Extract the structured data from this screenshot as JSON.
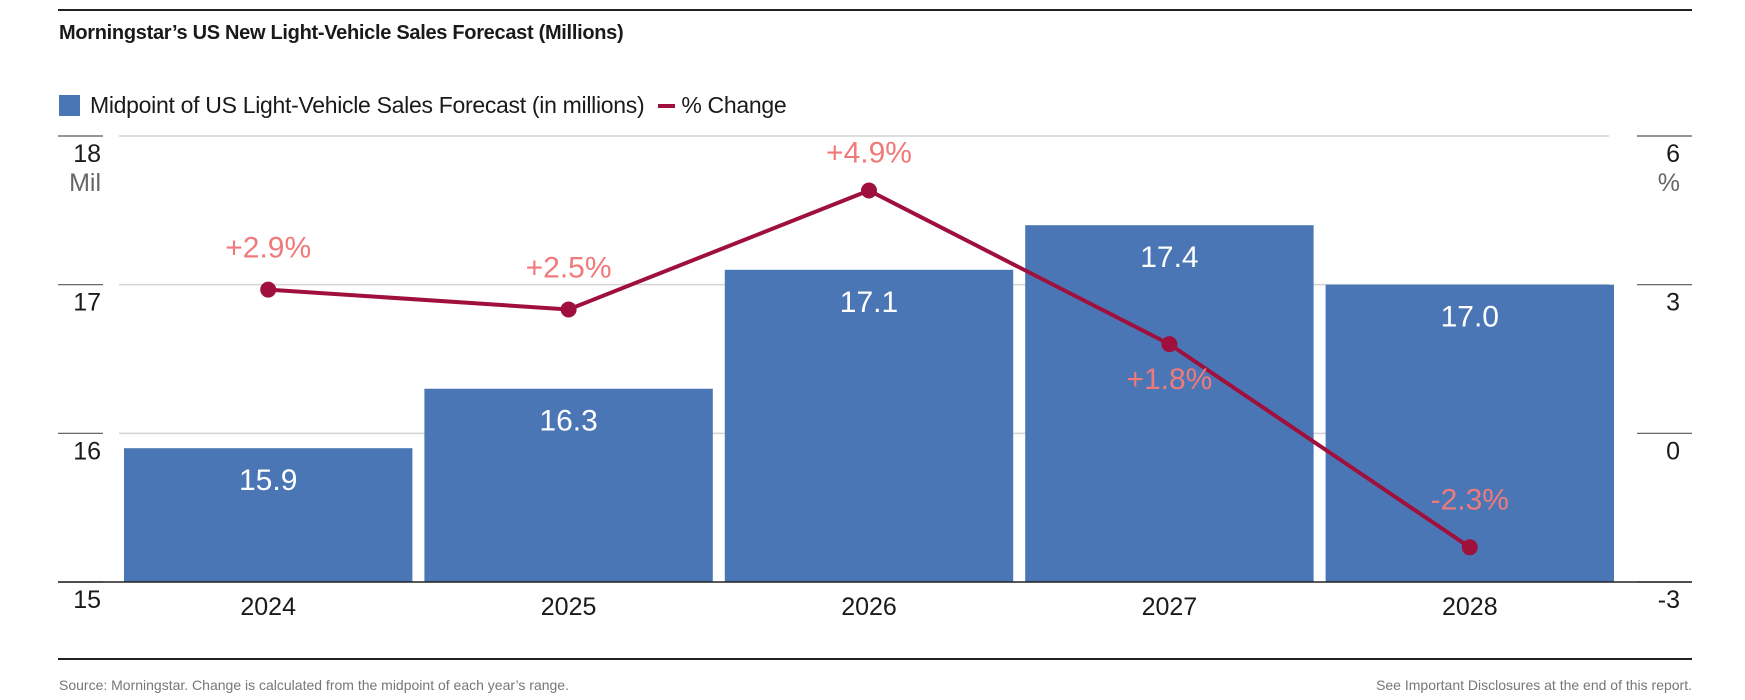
{
  "title": "Morningstar’s US New Light-Vehicle Sales Forecast (Millions)",
  "footer": {
    "source": "Source: Morningstar. Change is calculated from the midpoint of each year’s range.",
    "disclosure": "See Important Disclosures at the end of this report."
  },
  "colors": {
    "bar": "#4a76b5",
    "line": "#a0103d",
    "line_label": "#f07a7a",
    "grid": "#d4d4d4",
    "axis": "#222222"
  },
  "chart_data": {
    "type": "bar",
    "title": "Morningstar’s US New Light-Vehicle Sales Forecast (Millions)",
    "categories": [
      "2024",
      "2025",
      "2026",
      "2027",
      "2028"
    ],
    "series": [
      {
        "name": "Midpoint of US Light-Vehicle Sales Forecast (in millions)",
        "type": "bar",
        "axis": "left",
        "values": [
          15.9,
          16.3,
          17.1,
          17.4,
          17.0
        ],
        "labels": [
          "15.9",
          "16.3",
          "17.1",
          "17.4",
          "17.0"
        ]
      },
      {
        "name": "% Change",
        "type": "line",
        "axis": "right",
        "values": [
          2.9,
          2.5,
          4.9,
          1.8,
          -2.3
        ],
        "labels": [
          "+2.9%",
          "+2.5%",
          "+4.9%",
          "+1.8%",
          "-2.3%"
        ]
      }
    ],
    "left_axis": {
      "ylim": [
        15,
        18
      ],
      "ticks": [
        "15",
        "16",
        "17",
        "18"
      ],
      "unit": "Mil"
    },
    "right_axis": {
      "ylim": [
        -3,
        6
      ],
      "ticks": [
        "-3",
        "0",
        "3",
        "6"
      ],
      "unit": "%"
    },
    "legend": "top-left",
    "grid": true
  }
}
